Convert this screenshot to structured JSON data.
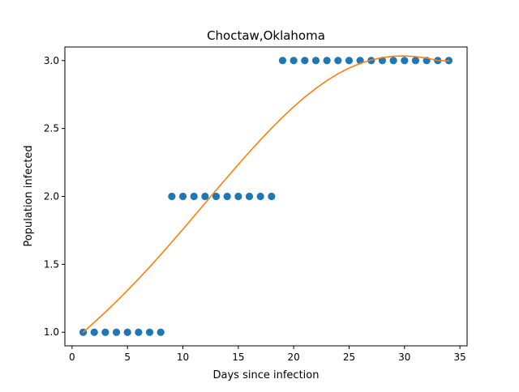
{
  "chart_data": {
    "type": "scatter",
    "title": "Choctaw,Oklahoma",
    "xlabel": "Days since infection",
    "ylabel": "Population infected",
    "xlim": [
      -0.65,
      35.65
    ],
    "ylim": [
      0.9,
      3.1
    ],
    "x_ticks": [
      0,
      5,
      10,
      15,
      20,
      25,
      30,
      35
    ],
    "x_tick_labels": [
      "0",
      "5",
      "10",
      "15",
      "20",
      "25",
      "30",
      "35"
    ],
    "y_ticks": [
      1.0,
      1.5,
      2.0,
      2.5,
      3.0
    ],
    "y_tick_labels": [
      "1.0",
      "1.5",
      "2.0",
      "2.5",
      "3.0"
    ],
    "grid": false,
    "legend": "none",
    "series": [
      {
        "kind": "scatter",
        "color": "#1f77b4",
        "x": [
          1,
          2,
          3,
          4,
          5,
          6,
          7,
          8,
          9,
          10,
          11,
          12,
          13,
          14,
          15,
          16,
          17,
          18,
          19,
          20,
          21,
          22,
          23,
          24,
          25,
          26,
          27,
          28,
          29,
          30,
          31,
          32,
          33,
          34
        ],
        "y": [
          1,
          1,
          1,
          1,
          1,
          1,
          1,
          1,
          2,
          2,
          2,
          2,
          2,
          2,
          2,
          2,
          2,
          2,
          3,
          3,
          3,
          3,
          3,
          3,
          3,
          3,
          3,
          3,
          3,
          3,
          3,
          3,
          3,
          3
        ]
      },
      {
        "kind": "line",
        "color": "#ff7f0e",
        "x": [
          1,
          2,
          3,
          4,
          5,
          6,
          7,
          8,
          9,
          10,
          11,
          12,
          13,
          14,
          15,
          16,
          17,
          18,
          19,
          20,
          21,
          22,
          23,
          24,
          25,
          26,
          27,
          28,
          29,
          30,
          31,
          32,
          33,
          34
        ],
        "y": [
          1.0,
          1.073,
          1.148,
          1.226,
          1.308,
          1.393,
          1.48,
          1.571,
          1.664,
          1.758,
          1.854,
          1.95,
          2.046,
          2.141,
          2.235,
          2.327,
          2.416,
          2.502,
          2.583,
          2.66,
          2.731,
          2.795,
          2.853,
          2.903,
          2.945,
          2.979,
          3.004,
          3.022,
          3.032,
          3.034,
          3.029,
          3.018,
          3.0,
          2.998
        ]
      }
    ]
  }
}
